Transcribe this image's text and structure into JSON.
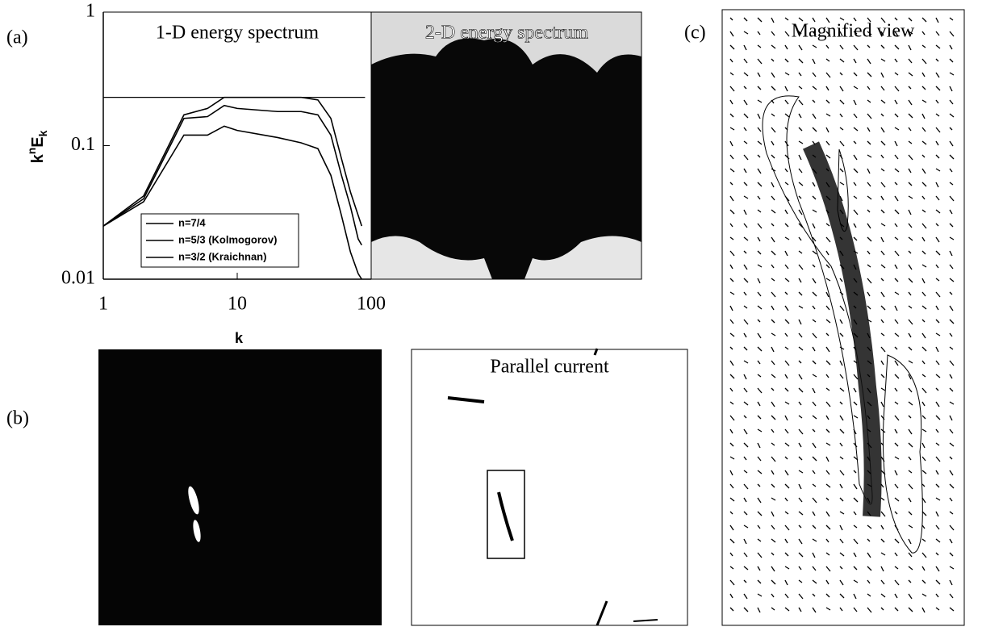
{
  "chart_data": {
    "type": "line",
    "panel_a": "(a)",
    "panel_b": "(b)",
    "panel_c": "(c)",
    "title": "1-D energy spectrum",
    "image_title": "2-D energy spectrum",
    "current_title": "Parallel current",
    "magnified_title": "Magnified view",
    "xlabel": "k",
    "ylabel": [
      "k",
      "n",
      "E",
      "k"
    ],
    "xscale": "log",
    "yscale": "log",
    "xlim": [
      1,
      100
    ],
    "ylim": [
      0.01,
      1
    ],
    "xticks": [
      1,
      10,
      100
    ],
    "yticks": [
      0.01,
      0.1,
      1
    ],
    "reference_y": 0.23,
    "x": [
      1,
      2,
      4,
      6,
      8,
      10,
      20,
      30,
      40,
      50,
      60,
      70,
      80,
      85
    ],
    "series": [
      {
        "name": "n=7/4",
        "color": "#000",
        "values": [
          0.025,
          0.042,
          0.17,
          0.19,
          0.23,
          0.23,
          0.23,
          0.23,
          0.22,
          0.16,
          0.08,
          0.045,
          0.03,
          0.025
        ]
      },
      {
        "name": "n=5/3 (Kolmogorov)",
        "color": "#000",
        "values": [
          0.025,
          0.04,
          0.16,
          0.165,
          0.2,
          0.19,
          0.18,
          0.18,
          0.17,
          0.12,
          0.06,
          0.035,
          0.02,
          0.018
        ]
      },
      {
        "name": "n=3/2 (Kraichnan)",
        "color": "#000",
        "values": [
          0.025,
          0.038,
          0.12,
          0.12,
          0.14,
          0.13,
          0.115,
          0.105,
          0.095,
          0.06,
          0.03,
          0.016,
          0.011,
          0.01
        ]
      }
    ],
    "legend": "lower-left"
  }
}
